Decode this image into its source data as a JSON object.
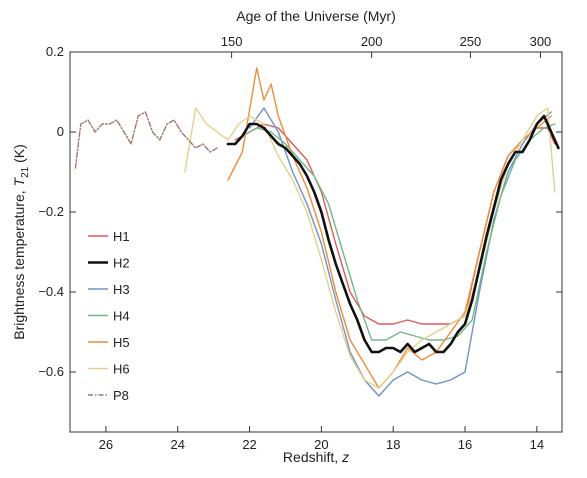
{
  "chart_data": {
    "type": "line",
    "xlabel": "Redshift, z",
    "top_xlabel": "Age of the Universe (Myr)",
    "ylabel": "Brightness temperature, T21 (K)",
    "xlim": [
      27,
      13.3
    ],
    "ylim": [
      -0.75,
      0.2
    ],
    "x_ticks": [
      26,
      24,
      22,
      20,
      18,
      16,
      14
    ],
    "y_ticks": [
      0.2,
      0,
      -0.2,
      -0.4,
      -0.6
    ],
    "y_tick_labels": [
      "0.2",
      "0",
      "−0.2",
      "−0.4",
      "−0.6"
    ],
    "top_ticks": [
      {
        "label": "150",
        "z": 22.5
      },
      {
        "label": "200",
        "z": 18.6
      },
      {
        "label": "250",
        "z": 15.85
      },
      {
        "label": "300",
        "z": 13.9
      }
    ],
    "grid": false,
    "legend_position": "left",
    "series": [
      {
        "name": "H1",
        "color": "#e05a5a",
        "width": 1.4,
        "dash": "",
        "x": [
          22.4,
          22.0,
          21.6,
          21.2,
          20.8,
          20.4,
          20.0,
          19.6,
          19.2,
          18.8,
          18.4,
          18.0,
          17.6,
          17.2,
          16.8,
          16.4,
          16.0,
          15.6,
          15.2,
          14.8,
          14.4,
          14.0,
          13.7,
          13.5
        ],
        "y": [
          -0.02,
          0.0,
          0.02,
          0.01,
          -0.03,
          -0.07,
          -0.15,
          -0.28,
          -0.4,
          -0.46,
          -0.48,
          -0.48,
          -0.47,
          -0.48,
          -0.48,
          -0.48,
          -0.46,
          -0.3,
          -0.15,
          -0.06,
          -0.02,
          0.01,
          0.01,
          -0.03
        ]
      },
      {
        "name": "H2",
        "color": "#111111",
        "width": 2.6,
        "dash": "",
        "x": [
          22.6,
          22.4,
          22.2,
          22.0,
          21.8,
          21.6,
          21.4,
          21.2,
          21.0,
          20.8,
          20.6,
          20.4,
          20.2,
          20.0,
          19.8,
          19.6,
          19.4,
          19.2,
          19.0,
          18.8,
          18.6,
          18.4,
          18.2,
          18.0,
          17.8,
          17.6,
          17.4,
          17.2,
          17.0,
          16.8,
          16.6,
          16.4,
          16.2,
          16.0,
          15.8,
          15.6,
          15.4,
          15.2,
          15.0,
          14.8,
          14.6,
          14.4,
          14.2,
          14.0,
          13.8,
          13.6,
          13.4
        ],
        "y": [
          -0.03,
          -0.03,
          -0.01,
          0.02,
          0.02,
          0.01,
          -0.01,
          -0.03,
          -0.04,
          -0.06,
          -0.08,
          -0.11,
          -0.15,
          -0.2,
          -0.27,
          -0.33,
          -0.38,
          -0.43,
          -0.47,
          -0.52,
          -0.55,
          -0.55,
          -0.54,
          -0.54,
          -0.55,
          -0.53,
          -0.55,
          -0.54,
          -0.53,
          -0.55,
          -0.55,
          -0.53,
          -0.5,
          -0.48,
          -0.42,
          -0.34,
          -0.26,
          -0.19,
          -0.12,
          -0.08,
          -0.05,
          -0.05,
          -0.02,
          0.02,
          0.04,
          0.0,
          -0.04
        ]
      },
      {
        "name": "H3",
        "color": "#6f93c4",
        "width": 1.4,
        "dash": "",
        "x": [
          22.0,
          21.6,
          21.2,
          20.8,
          20.4,
          20.0,
          19.6,
          19.2,
          18.8,
          18.4,
          18.0,
          17.6,
          17.2,
          16.8,
          16.4,
          16.0,
          15.6,
          15.2,
          14.8,
          14.4,
          14.0,
          13.6
        ],
        "y": [
          0.01,
          0.06,
          0.0,
          -0.1,
          -0.18,
          -0.28,
          -0.42,
          -0.55,
          -0.62,
          -0.66,
          -0.62,
          -0.6,
          -0.62,
          -0.63,
          -0.62,
          -0.6,
          -0.4,
          -0.22,
          -0.1,
          -0.03,
          0.02,
          0.05
        ]
      },
      {
        "name": "H4",
        "color": "#6fb88a",
        "width": 1.4,
        "dash": "",
        "x": [
          22.2,
          21.8,
          21.4,
          21.0,
          20.6,
          20.2,
          19.8,
          19.4,
          19.0,
          18.6,
          18.2,
          17.8,
          17.4,
          17.0,
          16.6,
          16.2,
          15.8,
          15.4,
          15.0,
          14.6,
          14.2,
          13.8,
          13.5
        ],
        "y": [
          -0.01,
          0.01,
          0.0,
          -0.03,
          -0.07,
          -0.11,
          -0.18,
          -0.3,
          -0.42,
          -0.52,
          -0.52,
          -0.5,
          -0.51,
          -0.52,
          -0.52,
          -0.51,
          -0.47,
          -0.3,
          -0.16,
          -0.07,
          -0.02,
          0.01,
          0.02
        ]
      },
      {
        "name": "H5",
        "color": "#ef8c3a",
        "width": 1.4,
        "dash": "",
        "x": [
          22.6,
          22.2,
          21.8,
          21.6,
          21.4,
          21.2,
          20.8,
          20.4,
          20.0,
          19.6,
          19.2,
          18.8,
          18.4,
          18.0,
          17.6,
          17.2,
          16.8,
          16.4,
          16.0,
          15.6,
          15.2,
          14.8,
          14.4,
          14.0,
          13.6
        ],
        "y": [
          -0.12,
          -0.05,
          0.16,
          0.08,
          0.12,
          0.04,
          -0.06,
          -0.14,
          -0.25,
          -0.4,
          -0.52,
          -0.58,
          -0.64,
          -0.6,
          -0.54,
          -0.57,
          -0.55,
          -0.5,
          -0.45,
          -0.3,
          -0.15,
          -0.06,
          -0.02,
          0.01,
          0.04
        ]
      },
      {
        "name": "H6",
        "color": "#e3d08a",
        "width": 1.4,
        "dash": "",
        "x": [
          23.8,
          23.5,
          23.2,
          22.9,
          22.6,
          22.3,
          22.0,
          21.6,
          21.2,
          20.8,
          20.4,
          20.0,
          19.6,
          19.2,
          18.8,
          18.4,
          18.0,
          17.6,
          17.2,
          16.8,
          16.4,
          16.0,
          15.6,
          15.2,
          14.8,
          14.4,
          14.0,
          13.7,
          13.5
        ],
        "y": [
          -0.1,
          0.06,
          0.02,
          0.0,
          -0.02,
          0.02,
          0.04,
          0.02,
          -0.06,
          -0.12,
          -0.2,
          -0.32,
          -0.45,
          -0.56,
          -0.62,
          -0.64,
          -0.6,
          -0.55,
          -0.52,
          -0.5,
          -0.48,
          -0.46,
          -0.35,
          -0.2,
          -0.08,
          -0.02,
          0.04,
          0.06,
          -0.15
        ]
      },
      {
        "name": "P8",
        "color": "#a0776a",
        "width": 1.4,
        "dash": "5,2,1.5,2",
        "x": [
          26.85,
          26.7,
          26.5,
          26.3,
          26.1,
          25.9,
          25.7,
          25.5,
          25.3,
          25.1,
          24.9,
          24.7,
          24.5,
          24.3,
          24.1,
          23.9,
          23.7,
          23.5,
          23.3,
          23.1,
          22.9
        ],
        "y": [
          -0.09,
          0.02,
          0.03,
          0.0,
          0.02,
          0.02,
          0.03,
          0.0,
          -0.03,
          0.04,
          0.05,
          0.0,
          -0.02,
          0.02,
          0.03,
          0.0,
          -0.02,
          -0.04,
          -0.03,
          -0.05,
          -0.04
        ]
      }
    ]
  }
}
